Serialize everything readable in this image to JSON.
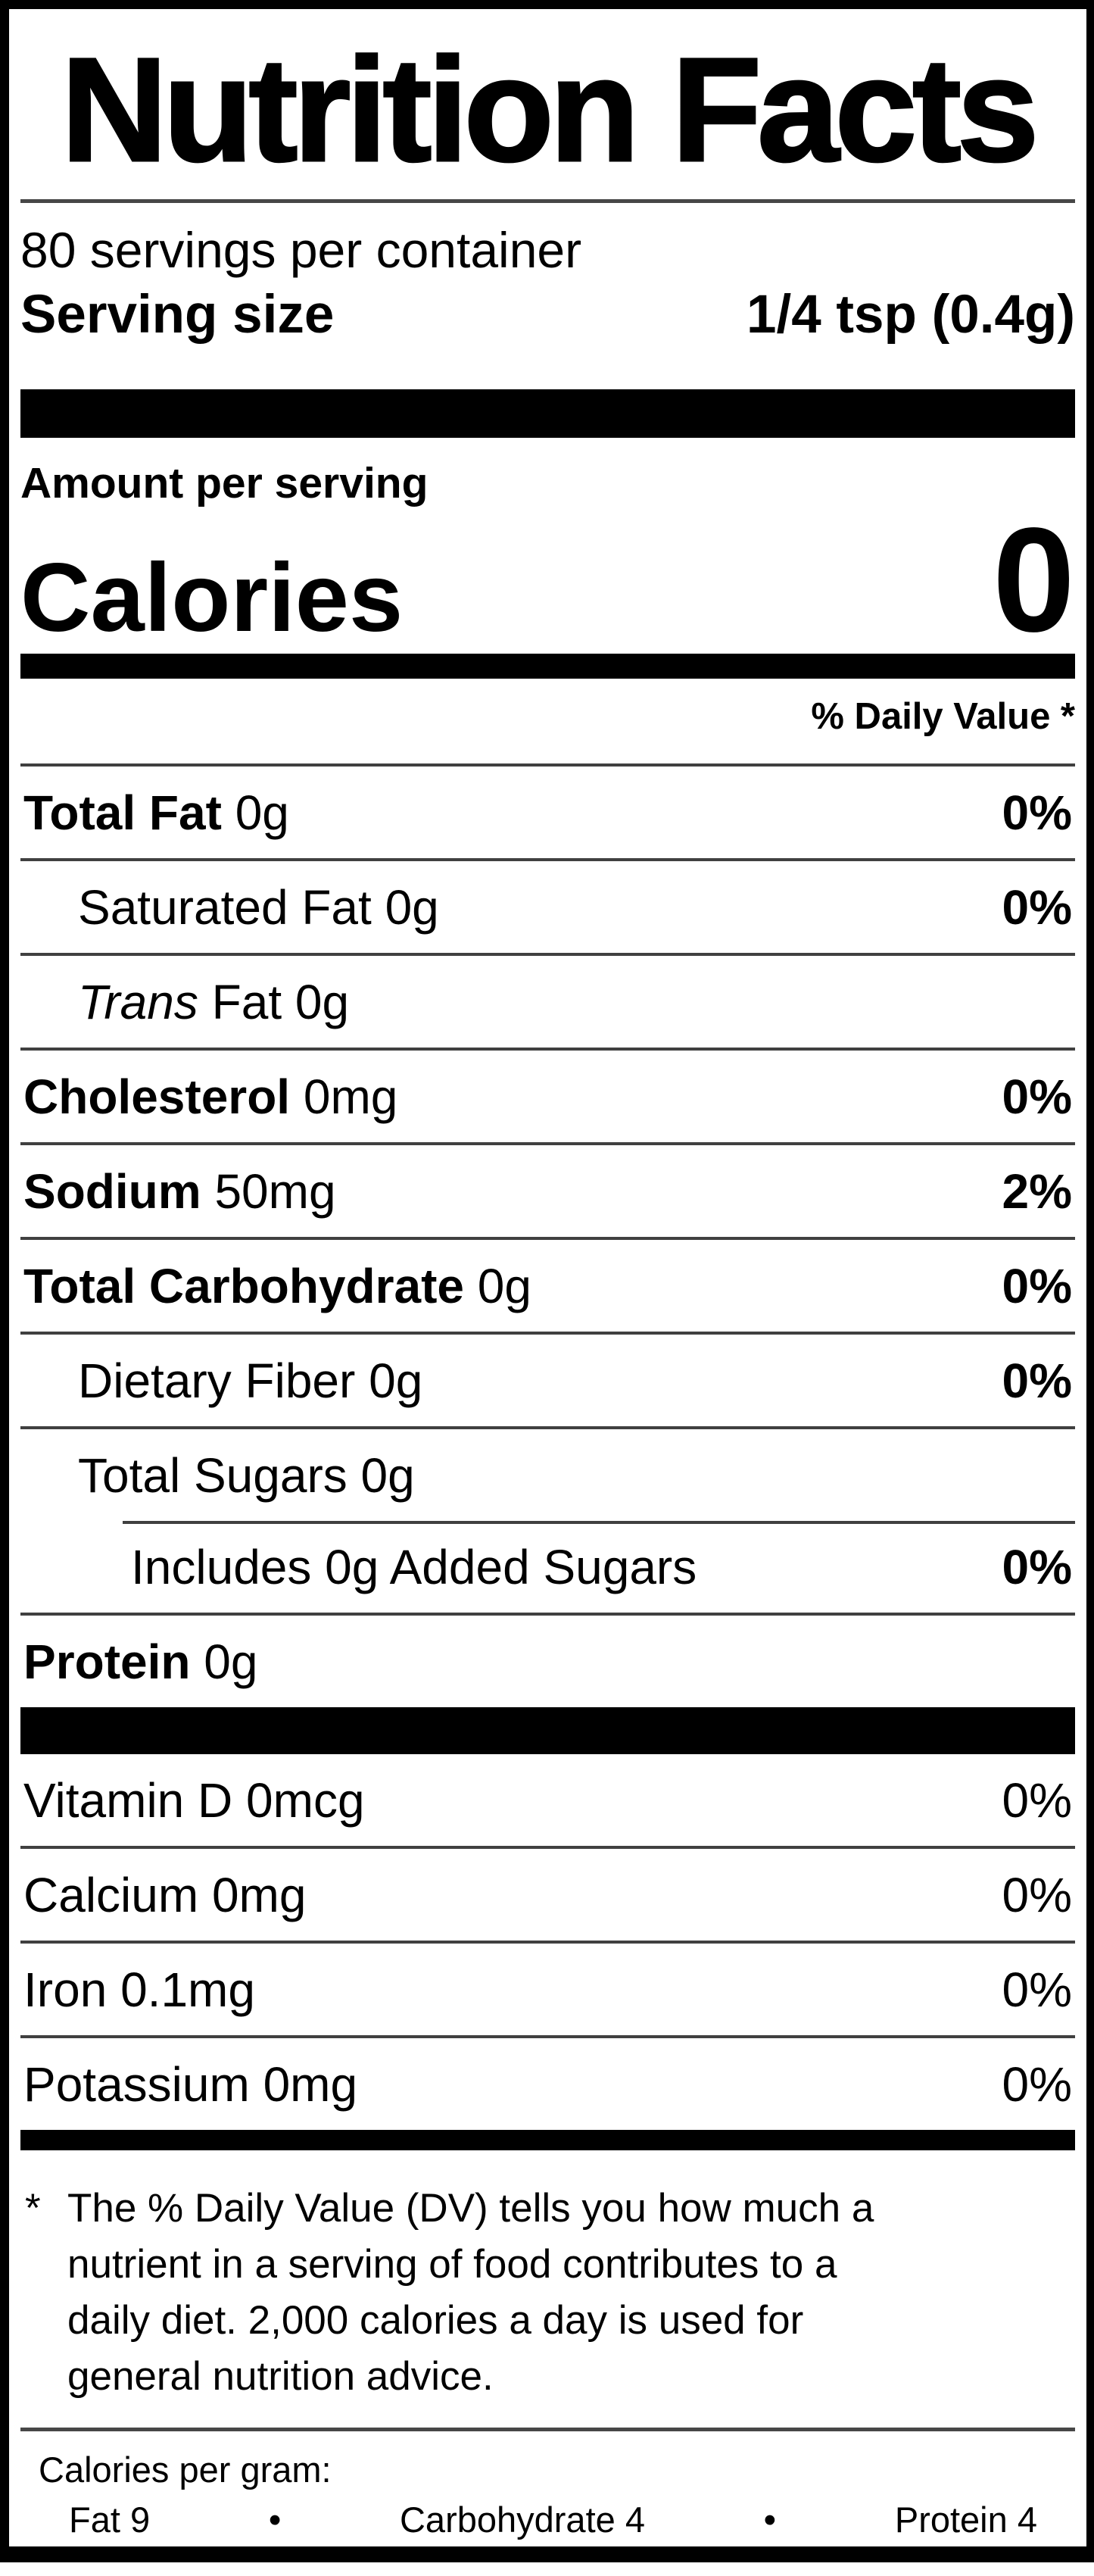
{
  "label": {
    "title": "Nutrition Facts",
    "servings_per_container": "80 servings per container",
    "serving_size": {
      "label": "Serving size",
      "value": "1/4 tsp (0.4g)"
    },
    "amount_per_serving": "Amount per serving",
    "calories": {
      "label": "Calories",
      "value": "0"
    },
    "daily_value_header": "% Daily Value *",
    "rows": [
      {
        "bold": "Total Fat",
        "amount": "0g",
        "dv": "0%"
      },
      {
        "name": "Saturated Fat",
        "amount": "0g",
        "dv": "0%"
      },
      {
        "italic": "Trans",
        "name": "Fat",
        "amount": "0g",
        "dv": ""
      },
      {
        "bold": "Cholesterol",
        "amount": "0mg",
        "dv": "0%"
      },
      {
        "bold": "Sodium",
        "amount": "50mg",
        "dv": "2%"
      },
      {
        "bold": "Total Carbohydrate",
        "amount": "0g",
        "dv": "0%"
      },
      {
        "name": "Dietary Fiber",
        "amount": "0g",
        "dv": "0%"
      },
      {
        "name": "Total Sugars",
        "amount": "0g",
        "dv": ""
      },
      {
        "name": "Includes 0g Added Sugars",
        "amount": "",
        "dv": "0%"
      },
      {
        "bold": "Protein",
        "amount": "0g",
        "dv": ""
      }
    ],
    "vitamins": [
      {
        "name": "Vitamin D",
        "amount": "0mcg",
        "dv": "0%"
      },
      {
        "name": "Calcium",
        "amount": "0mg",
        "dv": "0%"
      },
      {
        "name": "Iron",
        "amount": "0.1mg",
        "dv": "0%"
      },
      {
        "name": "Potassium",
        "amount": "0mg",
        "dv": "0%"
      }
    ],
    "footnote": {
      "marker": "*",
      "lines": [
        "The % Daily Value (DV) tells you how much a",
        "nutrient in a serving of food contributes to a",
        "daily diet. 2,000 calories a day is used for",
        "general nutrition advice."
      ]
    },
    "calories_per_gram": {
      "heading": "Calories per gram:",
      "separator": "•",
      "items": [
        "Fat 9",
        "Carbohydrate 4",
        "Protein 4"
      ]
    },
    "colors": {
      "ink": "#000000",
      "paper": "#ffffff",
      "hairline": "#404040"
    }
  }
}
